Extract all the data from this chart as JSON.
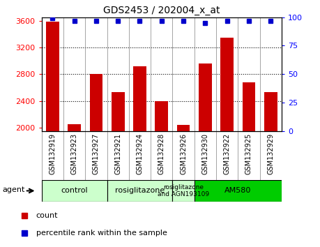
{
  "title": "GDS2453 / 202004_x_at",
  "samples": [
    "GSM132919",
    "GSM132923",
    "GSM132927",
    "GSM132921",
    "GSM132924",
    "GSM132928",
    "GSM132926",
    "GSM132930",
    "GSM132922",
    "GSM132925",
    "GSM132929"
  ],
  "counts": [
    3580,
    2050,
    2800,
    2530,
    2920,
    2390,
    2040,
    2960,
    3350,
    2680,
    2530
  ],
  "percentiles": [
    99,
    97,
    97,
    97,
    97,
    97,
    97,
    95,
    97,
    97,
    97
  ],
  "ylim_left": [
    1950,
    3650
  ],
  "ylim_right": [
    0,
    100
  ],
  "yticks_left": [
    2000,
    2400,
    2800,
    3200,
    3600
  ],
  "yticks_right": [
    0,
    25,
    50,
    75,
    100
  ],
  "bar_color": "#cc0000",
  "dot_color": "#0000cc",
  "groups": [
    {
      "label": "control",
      "start": 0,
      "end": 2,
      "color": "#ccffcc"
    },
    {
      "label": "rosiglitazone",
      "start": 3,
      "end": 5,
      "color": "#ccffcc"
    },
    {
      "label": "rosiglitazone\nand AGN193109",
      "start": 6,
      "end": 6,
      "color": "#ccffcc"
    },
    {
      "label": "AM580",
      "start": 7,
      "end": 10,
      "color": "#00cc00"
    }
  ],
  "legend_count_color": "#cc0000",
  "legend_dot_color": "#0000cc",
  "agent_label": "agent",
  "grid_lines": [
    2400,
    2800,
    3200
  ]
}
